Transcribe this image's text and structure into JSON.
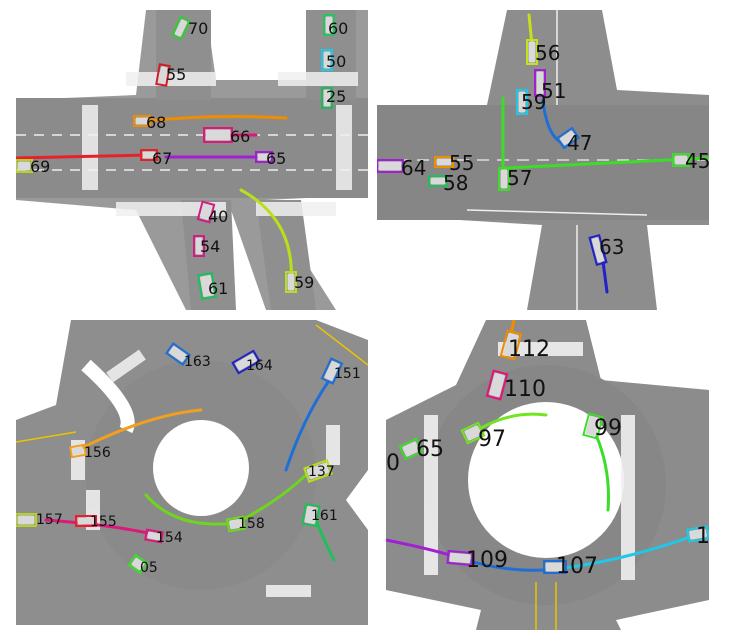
{
  "colors": {
    "road": "#8a8a8a",
    "road_dark": "#6f6f6f",
    "sidewalk": "#a7a7a7",
    "marking": "#f2f2f2",
    "background": "#ffffff"
  },
  "panels": [
    {
      "id": "top-left",
      "vehicles": [
        {
          "label": "70",
          "color": "#33cc33"
        },
        {
          "label": "60",
          "color": "#22c55e"
        },
        {
          "label": "50",
          "color": "#1ec8e6"
        },
        {
          "label": "55",
          "color": "#d11d2a"
        },
        {
          "label": "25",
          "color": "#1fb85a"
        },
        {
          "label": "68",
          "color": "#f08c00"
        },
        {
          "label": "66",
          "color": "#e0177a"
        },
        {
          "label": "67",
          "color": "#e8202a"
        },
        {
          "label": "65",
          "color": "#a21fd6"
        },
        {
          "label": "69",
          "color": "#b8d41a"
        },
        {
          "label": "40",
          "color": "#d11d84"
        },
        {
          "label": "54",
          "color": "#d11d84"
        },
        {
          "label": "61",
          "color": "#1fbf5a"
        },
        {
          "label": "59",
          "color": "#b8e01a"
        }
      ]
    },
    {
      "id": "top-right",
      "vehicles": [
        {
          "label": "56",
          "color": "#c6e01a"
        },
        {
          "label": "51",
          "color": "#a21fd6"
        },
        {
          "label": "59",
          "color": "#1ec8e6"
        },
        {
          "label": "47",
          "color": "#1f6fd6"
        },
        {
          "label": "64",
          "color": "#a21fd6"
        },
        {
          "label": "55",
          "color": "#f08c00"
        },
        {
          "label": "58",
          "color": "#1fbf5a"
        },
        {
          "label": "57",
          "color": "#3ddc2a"
        },
        {
          "label": "45",
          "color": "#3ddc2a"
        },
        {
          "label": "63",
          "color": "#2222c8"
        }
      ]
    },
    {
      "id": "bottom-left",
      "vehicles": [
        {
          "label": "163",
          "color": "#1f6fd6"
        },
        {
          "label": "164",
          "color": "#2222c8"
        },
        {
          "label": "151",
          "color": "#1f6fd6"
        },
        {
          "label": "156",
          "color": "#f0a020"
        },
        {
          "label": "137",
          "color": "#b8e01a"
        },
        {
          "label": "157",
          "color": "#b8d41a"
        },
        {
          "label": "155",
          "color": "#e8202a"
        },
        {
          "label": "154",
          "color": "#e0177a"
        },
        {
          "label": "158",
          "color": "#6fd61f"
        },
        {
          "label": "161",
          "color": "#1fbf5a"
        },
        {
          "label": "05",
          "color": "#3ddc2a"
        }
      ]
    },
    {
      "id": "bottom-right",
      "vehicles": [
        {
          "label": "112",
          "color": "#f08c00"
        },
        {
          "label": "110",
          "color": "#e0177a"
        },
        {
          "label": "65",
          "color": "#3ddc2a"
        },
        {
          "label": "0",
          "color": "#3ddc2a"
        },
        {
          "label": "97",
          "color": "#6fe61f"
        },
        {
          "label": "99",
          "color": "#3ddc2a"
        },
        {
          "label": "109",
          "color": "#a21fd6"
        },
        {
          "label": "107",
          "color": "#1f6fd6"
        },
        {
          "label": "1",
          "color": "#1ec8e6"
        }
      ]
    }
  ]
}
